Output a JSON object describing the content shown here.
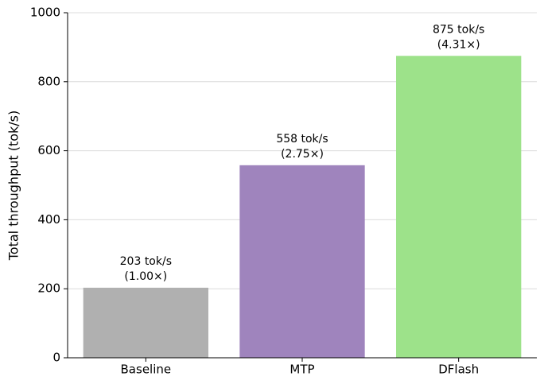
{
  "chart_data": {
    "type": "bar",
    "y_label": "Total throughput (tok/s)",
    "categories": [
      "Baseline",
      "MTP",
      "DFlash"
    ],
    "values": [
      203,
      558,
      875
    ],
    "value_labels": [
      [
        "203 tok/s",
        "(1.00×)"
      ],
      [
        "558 tok/s",
        "(2.75×)"
      ],
      [
        "875 tok/s",
        "(4.31×)"
      ]
    ],
    "colors": [
      "#b0b0b0",
      "#9f84bd",
      "#9de28a"
    ],
    "ylim": [
      0,
      1000
    ],
    "yticks": [
      0,
      200,
      400,
      600,
      800,
      1000
    ],
    "grid": true
  }
}
